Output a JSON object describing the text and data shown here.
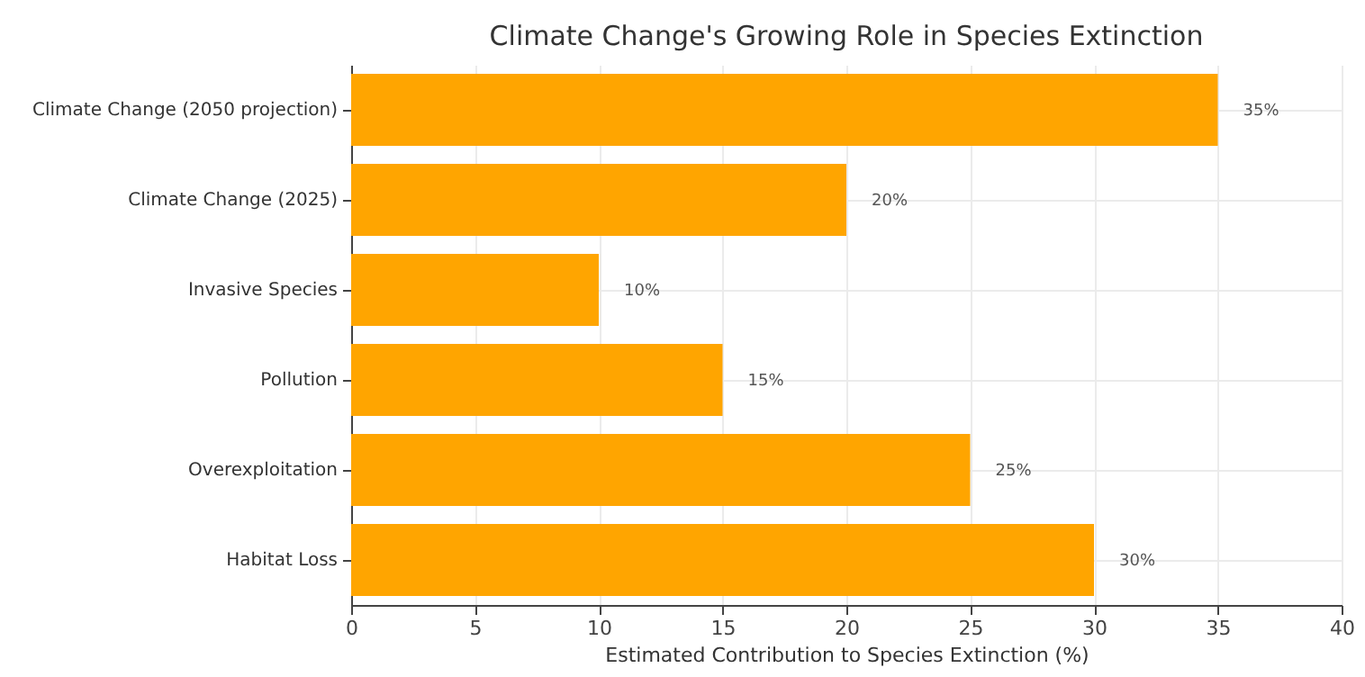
{
  "chart_data": {
    "type": "bar",
    "orientation": "horizontal",
    "title": "Climate Change's Growing Role in Species Extinction",
    "xlabel": "Estimated Contribution to Species Extinction (%)",
    "categories": [
      "Climate Change (2050 projection)",
      "Climate Change (2025)",
      "Invasive Species",
      "Pollution",
      "Overexploitation",
      "Habitat Loss"
    ],
    "values": [
      35,
      20,
      10,
      15,
      25,
      30
    ],
    "value_labels": [
      "35%",
      "20%",
      "10%",
      "15%",
      "25%",
      "30%"
    ],
    "color": "#ffa500",
    "xlim": [
      0,
      40
    ],
    "xticks": [
      0,
      5,
      10,
      15,
      20,
      25,
      30,
      35,
      40
    ],
    "grid": true
  }
}
